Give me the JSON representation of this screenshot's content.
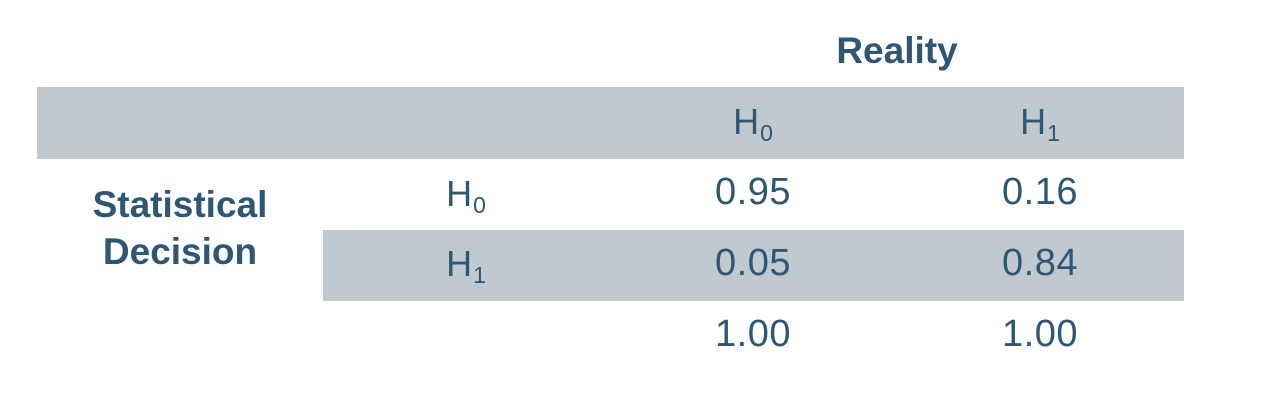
{
  "header": {
    "reality_label": "Reality",
    "columns": [
      {
        "main": "H",
        "sub": "0"
      },
      {
        "main": "H",
        "sub": "1"
      }
    ]
  },
  "row_header": {
    "line1": "Statistical",
    "line2": "Decision"
  },
  "rows": [
    {
      "label": {
        "main": "H",
        "sub": "0"
      },
      "values": [
        "0.95",
        "0.16"
      ]
    },
    {
      "label": {
        "main": "H",
        "sub": "1"
      },
      "values": [
        "0.05",
        "0.84"
      ]
    }
  ],
  "totals": [
    "1.00",
    "1.00"
  ],
  "colors": {
    "text": "#2e5775",
    "band": "#c0c8d0",
    "background": "#ffffff"
  }
}
